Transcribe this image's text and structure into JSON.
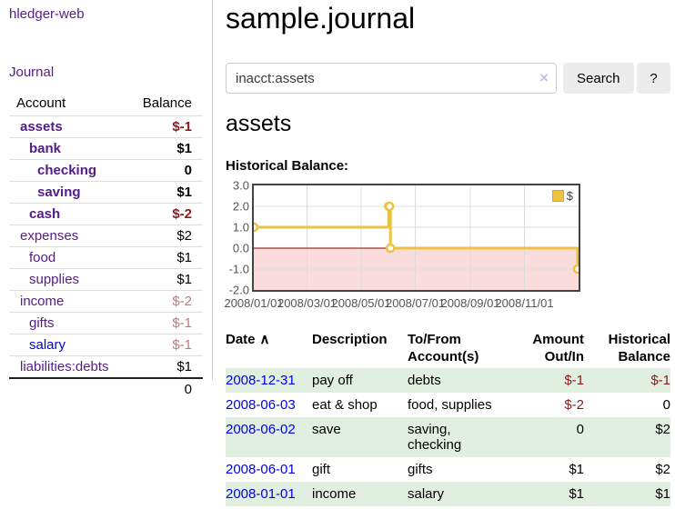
{
  "app": {
    "title": "hledger-web"
  },
  "sidebar": {
    "journal_label": "Journal",
    "accounts": {
      "header_account": "Account",
      "header_balance": "Balance",
      "rows": [
        {
          "name": "assets",
          "depth": 0,
          "bold": true,
          "balance": "$-1"
        },
        {
          "name": "bank",
          "depth": 1,
          "bold": true,
          "balance": "$1"
        },
        {
          "name": "checking",
          "depth": 2,
          "bold": true,
          "balance": "0"
        },
        {
          "name": "saving",
          "depth": 2,
          "bold": true,
          "balance": "$1"
        },
        {
          "name": "cash",
          "depth": 1,
          "bold": true,
          "balance": "$-2"
        },
        {
          "name": "expenses",
          "depth": 0,
          "bold": false,
          "balance": "$2"
        },
        {
          "name": "food",
          "depth": 1,
          "bold": false,
          "balance": "$1"
        },
        {
          "name": "supplies",
          "depth": 1,
          "bold": false,
          "balance": "$1"
        },
        {
          "name": "income",
          "depth": 0,
          "bold": false,
          "balance": "$-2"
        },
        {
          "name": "gifts",
          "depth": 1,
          "bold": false,
          "balance": "$-1"
        },
        {
          "name": "salary",
          "depth": 1,
          "bold": false,
          "balance": "$-1"
        },
        {
          "name": "liabilities:debts",
          "depth": 0,
          "bold": false,
          "balance": "$1"
        }
      ],
      "total": "0"
    }
  },
  "main": {
    "title": "sample.journal",
    "search": {
      "value": "inacct:assets",
      "clear_icon": "×",
      "button_label": "Search",
      "help_label": "?"
    },
    "account_heading": "assets"
  },
  "chart_data": {
    "type": "line",
    "title": "Historical Balance:",
    "steps": true,
    "x_start": "2008-01-01",
    "x_range_days": 366,
    "ylim": [
      -2,
      3
    ],
    "yticks": [
      3,
      2,
      1,
      0,
      -1,
      -2
    ],
    "xticks": [
      {
        "label": "2008/01/01",
        "day": 0
      },
      {
        "label": "2008/03/01",
        "day": 60
      },
      {
        "label": "2008/05/01",
        "day": 121
      },
      {
        "label": "2008/07/01",
        "day": 182
      },
      {
        "label": "2008/09/01",
        "day": 244
      },
      {
        "label": "2008/11/01",
        "day": 305
      }
    ],
    "series": [
      {
        "name": "$",
        "color": "#edc240",
        "points": [
          [
            "2008-01-01",
            1
          ],
          [
            "2008-06-01",
            2
          ],
          [
            "2008-06-02",
            2
          ],
          [
            "2008-06-03",
            0
          ],
          [
            "2008-12-31",
            -1
          ]
        ]
      }
    ],
    "legend": {
      "label": "$",
      "position": "top-right"
    },
    "grid_color": "#dcdcdc",
    "negative_region_color": "#fbdcdc",
    "zero_line_color": "#8b0000",
    "border_color": "#434343"
  },
  "register": {
    "headers": {
      "date": "Date",
      "description": "Description",
      "accounts": "To/From\nAccount(s)",
      "amount": "Amount\nOut/In",
      "balance": "Historical\nBalance"
    },
    "sort_icon": "∧",
    "rows": [
      {
        "date": "2008-12-31",
        "description": "pay off",
        "accounts": "debts",
        "amount": "$-1",
        "balance": "$-1"
      },
      {
        "date": "2008-06-03",
        "description": "eat & shop",
        "accounts": "food, supplies",
        "amount": "$-2",
        "balance": "0"
      },
      {
        "date": "2008-06-02",
        "description": "save",
        "accounts": "saving,\nchecking",
        "amount": "0",
        "balance": "$2"
      },
      {
        "date": "2008-06-01",
        "description": "gift",
        "accounts": "gifts",
        "amount": "$1",
        "balance": "$2"
      },
      {
        "date": "2008-01-01",
        "description": "income",
        "accounts": "salary",
        "amount": "$1",
        "balance": "$1"
      }
    ]
  },
  "colors": {
    "link_purple": "#551a8b",
    "link_blue": "#0000ee",
    "negative_strong": "#8b1a1a",
    "negative_soft": "#b87c7c",
    "row_green": "#e0efdf",
    "series_gold": "#edc240"
  }
}
